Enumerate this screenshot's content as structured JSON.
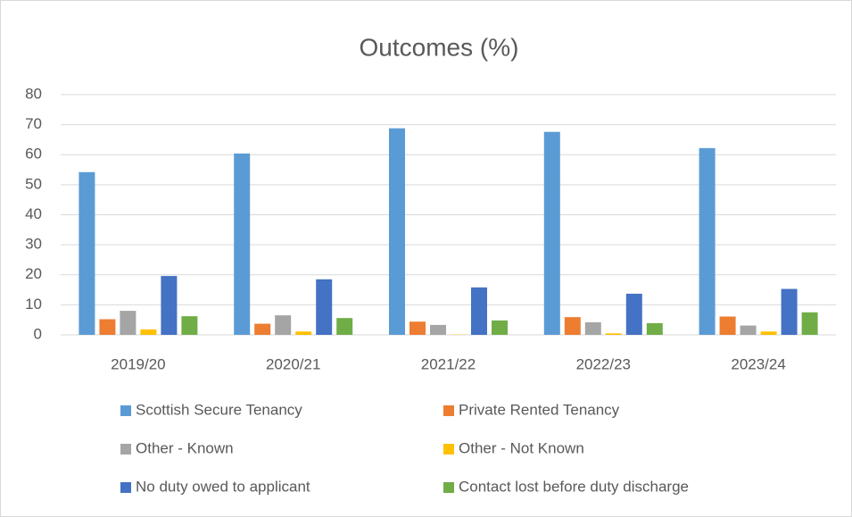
{
  "chart_data": {
    "type": "bar",
    "title": "Outcomes (%)",
    "categories": [
      "2019/20",
      "2020/21",
      "2021/22",
      "2022/23",
      "2023/24"
    ],
    "series": [
      {
        "name": "Scottish Secure Tenancy",
        "color": "#5b9bd5",
        "values": [
          54.2,
          60.4,
          68.8,
          67.6,
          62.2
        ]
      },
      {
        "name": "Private Rented Tenancy",
        "color": "#ed7d31",
        "values": [
          5.2,
          3.7,
          4.4,
          5.9,
          6.1
        ]
      },
      {
        "name": "Other - Known",
        "color": "#a5a5a5",
        "values": [
          8.0,
          6.5,
          3.3,
          4.2,
          3.1
        ]
      },
      {
        "name": "Other - Not Known",
        "color": "#ffc000",
        "values": [
          1.8,
          1.1,
          0.1,
          0.5,
          1.1
        ]
      },
      {
        "name": "No duty owed to applicant",
        "color": "#4472c4",
        "values": [
          19.6,
          18.5,
          15.8,
          13.7,
          15.3
        ]
      },
      {
        "name": "Contact lost before duty discharge",
        "color": "#70ad47",
        "values": [
          6.2,
          5.6,
          4.8,
          3.9,
          7.5
        ]
      }
    ],
    "ylim": [
      0,
      80
    ],
    "yticks": [
      0,
      10,
      20,
      30,
      40,
      50,
      60,
      70,
      80
    ],
    "grid": true
  }
}
